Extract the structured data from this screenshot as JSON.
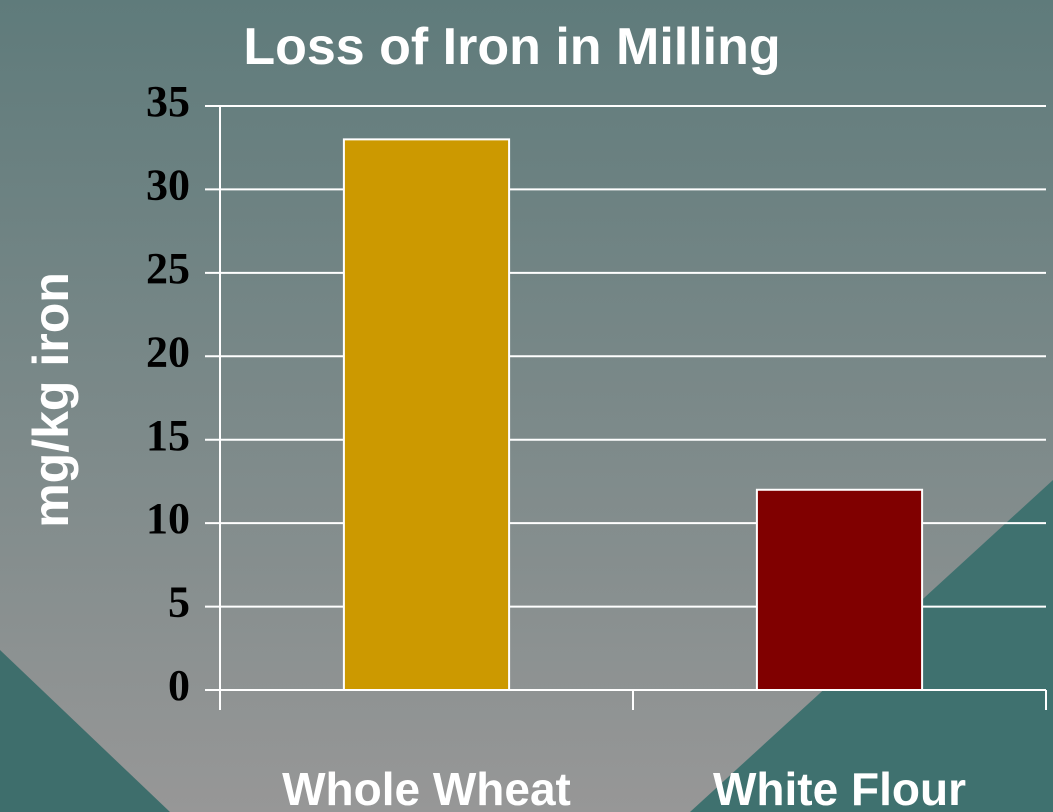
{
  "chart_data": {
    "type": "bar",
    "title": "Loss of Iron in Milling",
    "y_label": "mg/kg iron",
    "categories": [
      "Whole Wheat",
      "White Flour"
    ],
    "values": [
      33,
      12
    ],
    "colors": [
      "#cc9900",
      "#800000"
    ],
    "ylim": [
      0,
      35
    ],
    "yticks": [
      0,
      5,
      10,
      15,
      20,
      25,
      30,
      35
    ],
    "grid": true
  }
}
